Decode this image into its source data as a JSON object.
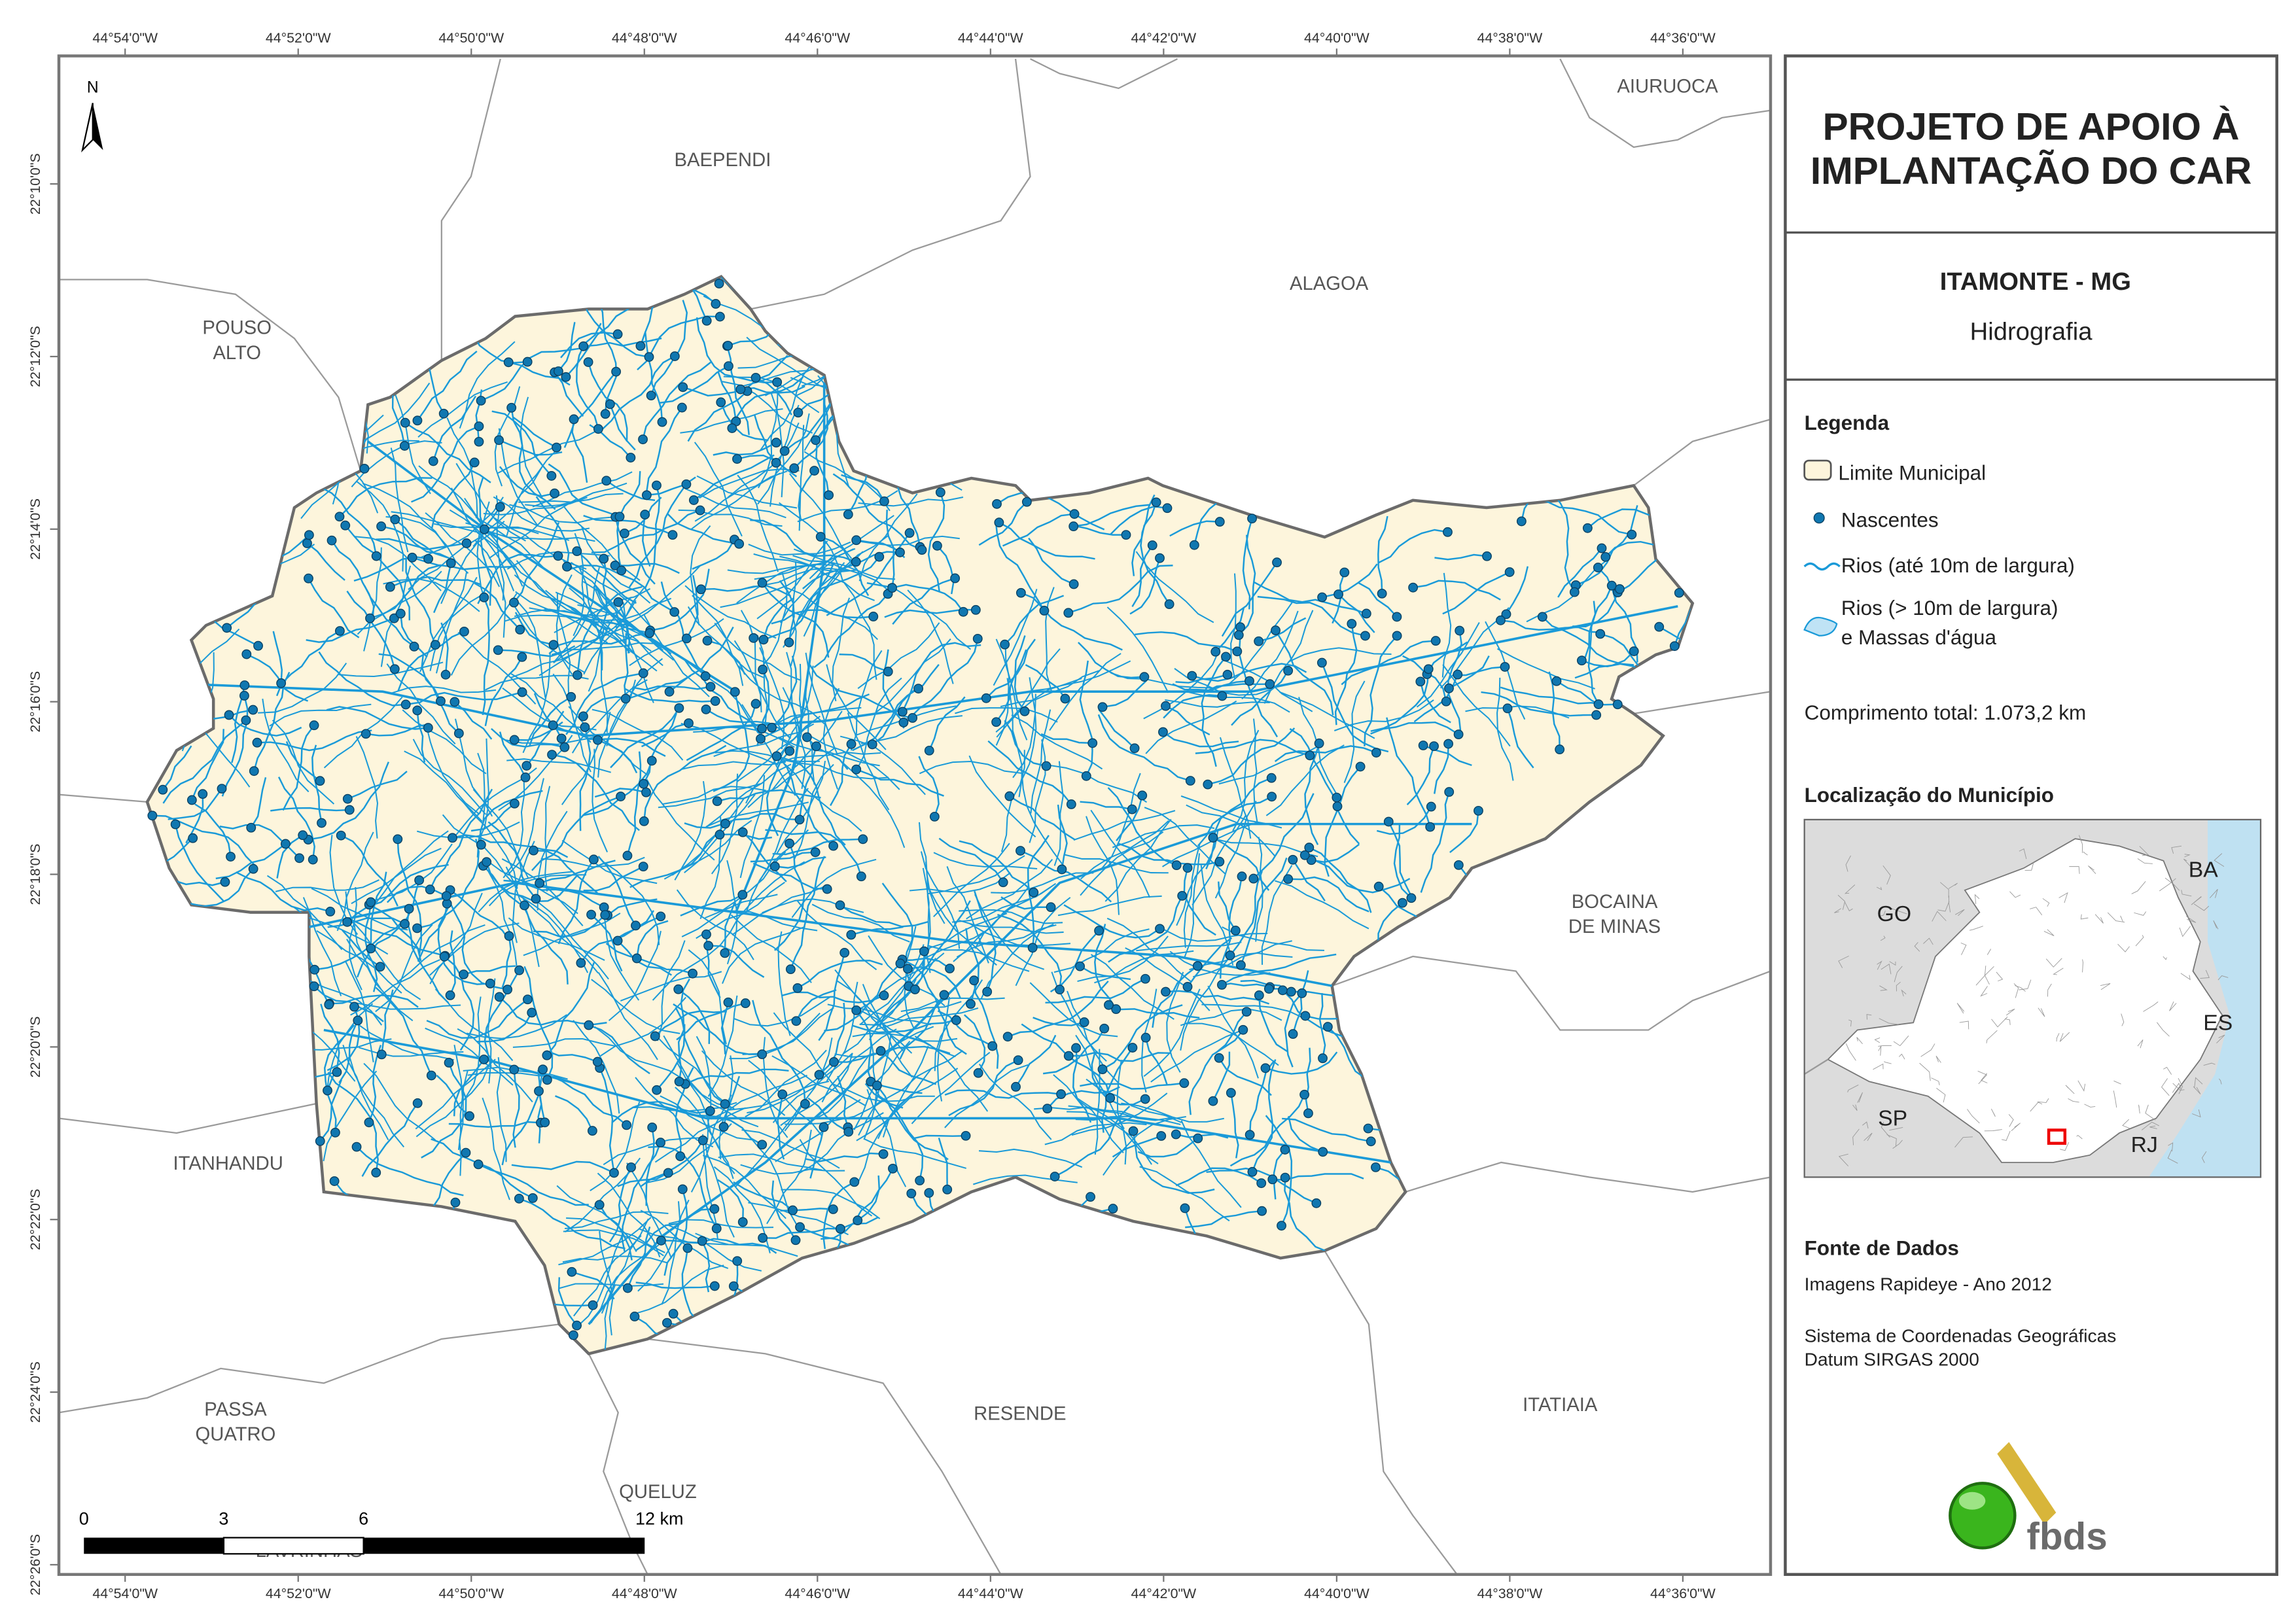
{
  "map": {
    "lon_labels": [
      "44°54'0\"W",
      "44°52'0\"W",
      "44°50'0\"W",
      "44°48'0\"W",
      "44°46'0\"W",
      "44°44'0\"W",
      "44°42'0\"W",
      "44°40'0\"W",
      "44°38'0\"W",
      "44°36'0\"W"
    ],
    "lat_labels": [
      "22°10'0\"S",
      "22°12'0\"S",
      "22°14'0\"S",
      "22°16'0\"S",
      "22°18'0\"S",
      "22°20'0\"S",
      "22°22'0\"S",
      "22°24'0\"S",
      "22°26'0\"S"
    ],
    "north": "N",
    "places": [
      [
        "BAEPENDI"
      ],
      [
        "AIURUOCA"
      ],
      [
        "POUSO",
        "ALTO"
      ],
      [
        "ALAGOA"
      ],
      [
        "BOCAINA",
        "DE MINAS"
      ],
      [
        "ITANHANDU"
      ],
      [
        "PASSA",
        "QUATRO"
      ],
      [
        "RESENDE"
      ],
      [
        "ITATIAIA"
      ],
      [
        "QUELUZ"
      ],
      [
        "LAVRINHAS"
      ]
    ],
    "scale_bar": [
      "0",
      "3",
      "6",
      "12 km"
    ]
  },
  "panel": {
    "title": [
      "PROJETO DE APOIO À",
      "IMPLANTAÇÃO DO CAR"
    ],
    "municipality": "ITAMONTE - MG",
    "theme": "Hidrografia",
    "legend_title": "Legenda",
    "legend": [
      "Limite Municipal",
      "Nascentes",
      "Rios (até 10m de largura)",
      [
        "Rios (> 10m de largura)",
        "e Massas d'água"
      ]
    ],
    "total_length": "Comprimento total: 1.073,2 km",
    "location_title": "Localização do Município",
    "inset_labels": [
      "GO",
      "BA",
      "ES",
      "SP",
      "RJ"
    ],
    "source_title": "Fonte de Dados",
    "source": [
      "Imagens Rapideye - Ano 2012",
      "Sistema de Coordenadas Geográficas",
      "Datum SIRGAS 2000"
    ],
    "logo": "fbds"
  }
}
